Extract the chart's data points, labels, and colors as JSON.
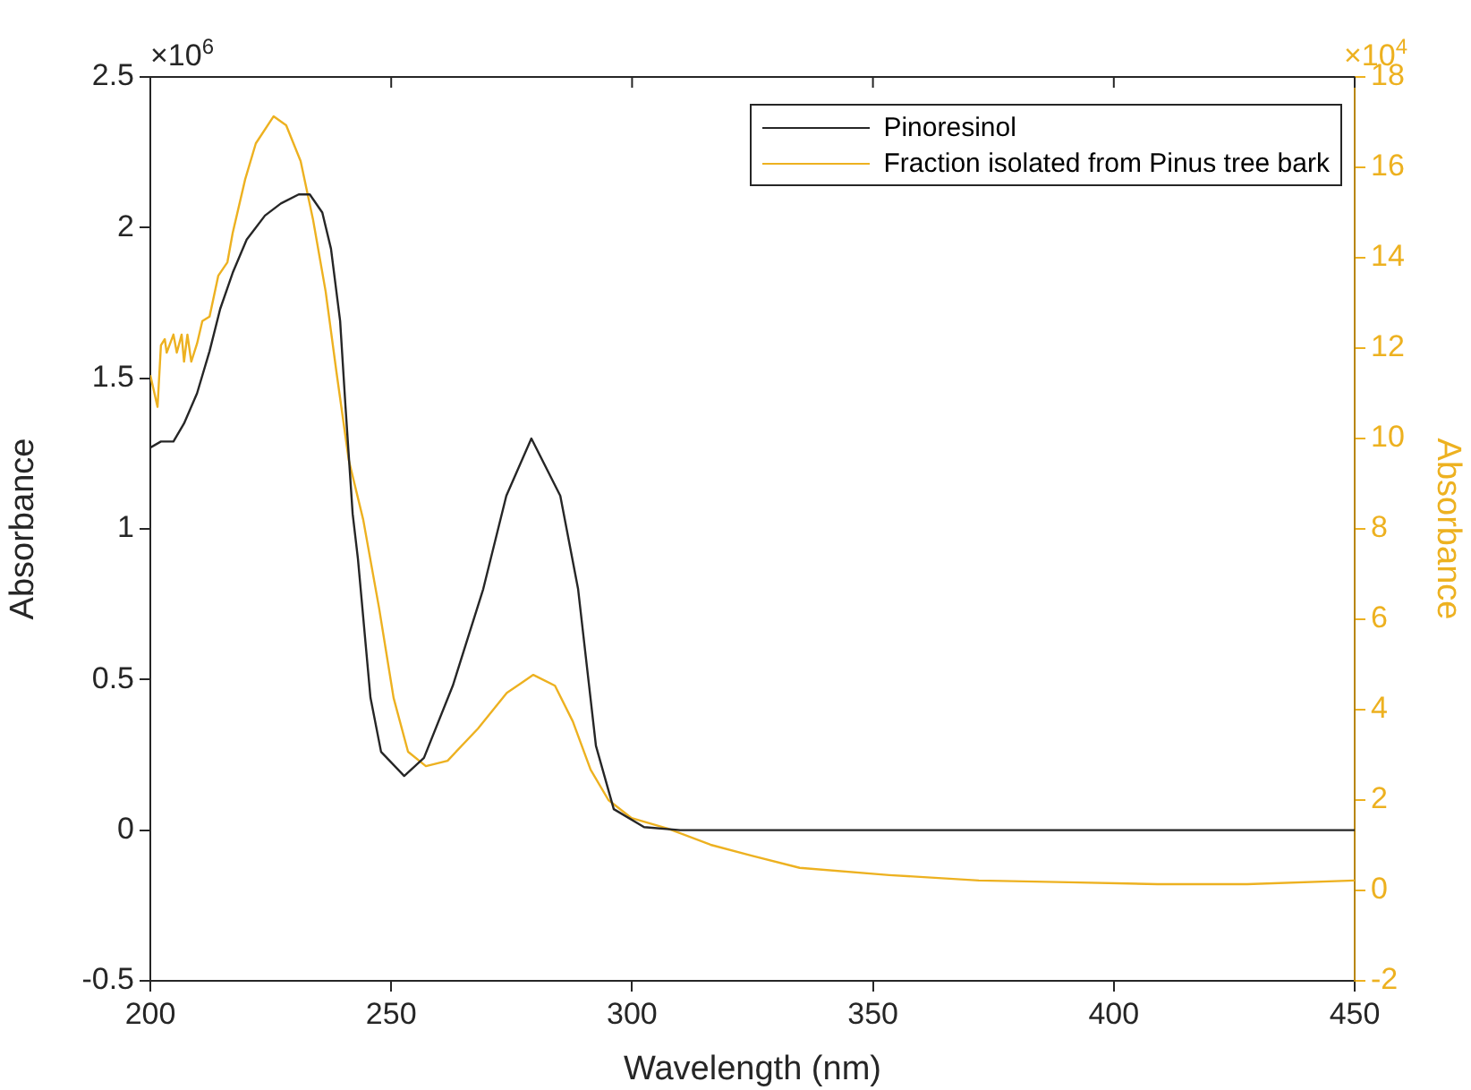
{
  "chart_data": {
    "type": "line",
    "xlabel": "Wavelength (nm)",
    "ylabel": "Absorbance",
    "y2label": "Absorbance",
    "annotations": [
      "×10$^{6}$",
      "×10$^{4}$"
    ],
    "xlim": [
      200,
      450
    ],
    "xticks": [
      200,
      250,
      300,
      350,
      400,
      450
    ],
    "ylim": [
      -0.5,
      2.5
    ],
    "yticks": [
      -0.5,
      0,
      0.5,
      1,
      1.5,
      2,
      2.5
    ],
    "y2lim": [
      -2,
      18
    ],
    "y2ticks": [
      -2,
      0,
      2,
      4,
      6,
      8,
      10,
      12,
      14,
      16,
      18
    ],
    "grid": false,
    "legend": "top right",
    "marker": "none",
    "line_style": "solid",
    "series": [
      {
        "name": "Pinoresinol",
        "color": "#262626",
        "x": [
          200,
          202.2,
          204.8,
          207,
          209.7,
          212.3,
          214.5,
          217.1,
          220,
          223.8,
          227.1,
          230.8,
          233.1,
          235.7,
          237.5,
          239.4,
          240.5,
          242,
          243.1,
          245.7,
          247.9,
          252.7,
          256.8,
          262.8,
          269.1,
          273.9,
          279.1,
          285.1,
          288.8,
          292.5,
          296.2,
          302.5,
          310,
          350,
          400,
          450
        ],
        "values": [
          1.27,
          1.29,
          1.29,
          1.35,
          1.45,
          1.59,
          1.73,
          1.85,
          1.96,
          2.04,
          2.08,
          2.11,
          2.11,
          2.05,
          1.93,
          1.69,
          1.41,
          1.05,
          0.9,
          0.44,
          0.26,
          0.18,
          0.24,
          0.48,
          0.8,
          1.11,
          1.3,
          1.11,
          0.8,
          0.28,
          0.07,
          0.01,
          0,
          0,
          0,
          0
        ]
      },
      {
        "name": "Fraction isolated from Pinus tree bark",
        "color": "#edb120",
        "axis": "y2",
        "x": [
          200,
          201.5,
          202.2,
          203,
          203.4,
          204.8,
          205.5,
          206.5,
          207,
          207.7,
          208.5,
          209.7,
          210.8,
          212.3,
          214.1,
          216,
          217.1,
          219.7,
          221.9,
          225.6,
          228.2,
          231.2,
          233.8,
          236.4,
          238.6,
          241.2,
          244.2,
          247.5,
          250.5,
          253.5,
          257.2,
          261.7,
          268,
          274,
          279.5,
          284,
          287.7,
          291.4,
          295.1,
          299.9,
          307.4,
          316.3,
          324.8,
          334.8,
          353.4,
          372,
          390.6,
          409.1,
          427.7,
          450
        ],
        "values": [
          11.4,
          10.7,
          12.06,
          12.2,
          11.9,
          12.3,
          11.9,
          12.3,
          11.7,
          12.3,
          11.7,
          12.1,
          12.6,
          12.7,
          13.6,
          13.9,
          14.55,
          15.74,
          16.53,
          17.13,
          16.93,
          16.14,
          14.83,
          13.25,
          11.5,
          9.52,
          8.2,
          6.24,
          4.26,
          3.07,
          2.75,
          2.87,
          3.58,
          4.37,
          4.77,
          4.53,
          3.74,
          2.67,
          2,
          1.6,
          1.37,
          1.01,
          0.77,
          0.5,
          0.34,
          0.22,
          0.18,
          0.14,
          0.14,
          0.22
        ]
      }
    ]
  }
}
